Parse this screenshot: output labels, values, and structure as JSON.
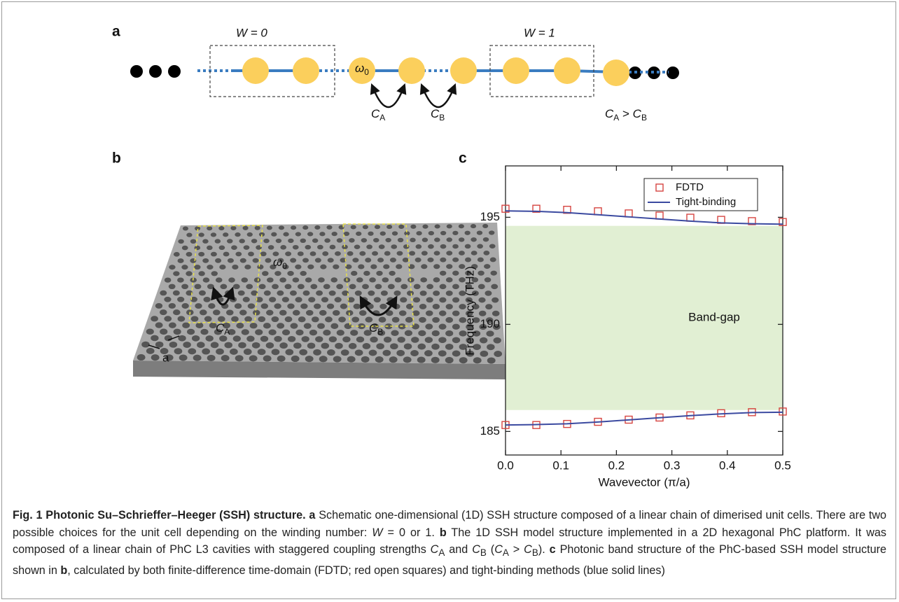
{
  "panel_a": {
    "label": "a",
    "box_left_label": "W = 0",
    "box_right_label": "W = 1",
    "omega": {
      "main": "ω",
      "sub": "0"
    },
    "coupling_a": {
      "main": "C",
      "sub": "A"
    },
    "coupling_b": {
      "main": "C",
      "sub": "B"
    },
    "relation": {
      "left": "C",
      "left_sub": "A",
      "op": " > ",
      "right": "C",
      "right_sub": "B"
    }
  },
  "panel_b": {
    "label": "b",
    "omega": {
      "main": "ω",
      "sub": "0"
    },
    "coupling_a": {
      "main": "C",
      "sub": "A"
    },
    "coupling_b": {
      "main": "C",
      "sub": "B"
    },
    "lattice": "a"
  },
  "panel_c_label": "c",
  "chart_data": {
    "type": "line",
    "xlabel": "Wavevector (π/a)",
    "ylabel": "Frequency (THz)",
    "x": [
      0.0,
      0.0556,
      0.1111,
      0.1667,
      0.2222,
      0.2778,
      0.3333,
      0.3889,
      0.4444,
      0.5
    ],
    "series": [
      {
        "name": "FDTD",
        "color": "#d64541",
        "marker": "square",
        "bands": [
          [
            195.4,
            195.4,
            195.35,
            195.28,
            195.18,
            195.08,
            194.98,
            194.88,
            194.82,
            194.78
          ],
          [
            185.3,
            185.3,
            185.35,
            185.45,
            185.55,
            185.65,
            185.75,
            185.85,
            185.9,
            185.93
          ]
        ]
      },
      {
        "name": "Tight-binding",
        "color": "#3b4aa0",
        "marker": "none",
        "bands": [
          [
            195.3,
            195.28,
            195.22,
            195.12,
            195.02,
            194.92,
            194.82,
            194.74,
            194.7,
            194.68
          ],
          [
            185.3,
            185.32,
            185.36,
            185.44,
            185.54,
            185.64,
            185.74,
            185.82,
            185.88,
            185.9
          ]
        ]
      }
    ],
    "band_gap": {
      "label": "Band-gap",
      "range": [
        186.0,
        194.6
      ],
      "color": "#e1efd3"
    },
    "xlim": [
      0,
      0.5
    ],
    "ylim": [
      183.9,
      197.4
    ],
    "xticks": [
      {
        "value": 0,
        "label": "0.0"
      },
      0.1,
      0.2,
      0.3,
      0.4,
      0.5
    ],
    "yticks": [
      185,
      190,
      195
    ],
    "legend": "upper right"
  },
  "caption": {
    "segments": [
      "Fig. 1 Photonic Su–Schrieffer–Heeger (SSH) structure.",
      "a",
      "Schematic one-dimensional (1D) SSH structure composed of a linear chain of dimerised unit cells. There are two possible choices for the unit cell depending on the winding number:",
      "W",
      "= 0 or 1.",
      "b",
      "The 1D SSH model structure implemented in a 2D hexagonal PhC platform. It was composed of a linear chain of PhC L3 cavities with staggered coupling strengths",
      "C",
      "A",
      "and",
      "C",
      "B",
      "(",
      "C",
      "A",
      ">",
      "C",
      "B",
      ").",
      "c",
      "Photonic band structure of the PhC-based SSH model structure shown in",
      "b",
      ", calculated by both finite-difference time-domain (FDTD; red open squares) and tight-binding methods (blue solid lines)"
    ]
  }
}
